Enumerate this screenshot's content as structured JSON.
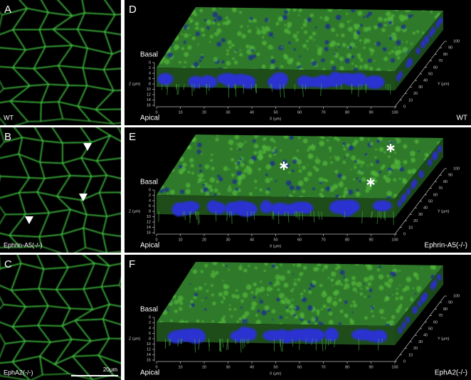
{
  "panels": [
    {
      "letter": "A",
      "label": "WT"
    },
    {
      "letter": "B",
      "label": "Ephrin-A5(-/-)"
    },
    {
      "letter": "C",
      "label": "EphA2(-/-)",
      "scale_bar": "20μm"
    }
  ],
  "views": [
    {
      "letter": "D",
      "label": "WT"
    },
    {
      "letter": "E",
      "label": "Ephrin-A5(-/-)"
    },
    {
      "letter": "F",
      "label": "EphA2(-/-)"
    }
  ],
  "axes": {
    "basal": "Basal",
    "apical": "Apical",
    "z_label": "Z (μm)",
    "x_label": "X (μm)",
    "y_label": "Y (μm)",
    "z_ticks": [
      0,
      2,
      4,
      6,
      8,
      10,
      12,
      14,
      16
    ],
    "x_ticks": [
      0,
      10,
      20,
      30,
      40,
      50,
      60,
      70,
      80,
      90,
      100
    ],
    "y_ticks": [
      0,
      10,
      20,
      30,
      40,
      50,
      60,
      70,
      80,
      90,
      100
    ]
  }
}
